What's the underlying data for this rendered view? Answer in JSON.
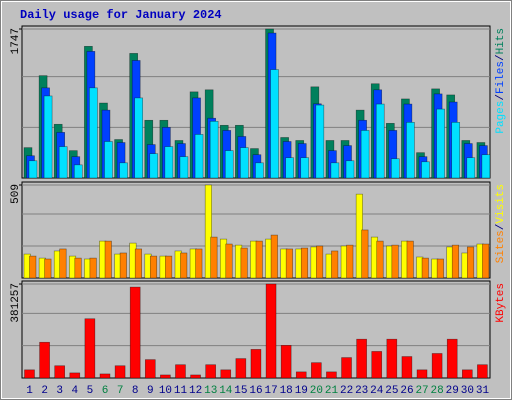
{
  "chart_data": [
    {
      "type": "bar",
      "title": "Daily usage for January 2024",
      "ylim": [
        0,
        1747
      ],
      "yticks": [
        1747
      ],
      "legend_separator": "/",
      "series": [
        {
          "name": "Hits",
          "color": "#00805c",
          "values": [
            356,
            1200,
            630,
            321,
            1544,
            879,
            451,
            1461,
            677,
            677,
            440,
            1010,
            1034,
            618,
            618,
            345,
            1747,
            475,
            440,
            1069,
            440,
            440,
            796,
            1105,
            641,
            927,
            297,
            1045,
            974,
            440,
            416
          ]
        },
        {
          "name": "Files",
          "color": "#0040ff",
          "values": [
            261,
            1057,
            535,
            250,
            1485,
            796,
            416,
            1378,
            392,
            594,
            404,
            939,
            701,
            558,
            487,
            273,
            1700,
            428,
            404,
            870,
            321,
            380,
            677,
            1034,
            558,
            867,
            250,
            986,
            891,
            404,
            380
          ]
        },
        {
          "name": "Pages",
          "color": "#00e0ff",
          "values": [
            202,
            962,
            368,
            154,
            1057,
            428,
            178,
            939,
            285,
            368,
            250,
            511,
            665,
            321,
            356,
            178,
            1271,
            238,
            238,
            855,
            178,
            202,
            558,
            867,
            226,
            653,
            190,
            808,
            653,
            238,
            273
          ]
        }
      ]
    },
    {
      "type": "bar",
      "ylim": [
        0,
        509
      ],
      "yticks": [
        509
      ],
      "legend_separator": "/",
      "series": [
        {
          "name": "Visits",
          "color": "#ffff00",
          "values": [
            131,
            109,
            148,
            120,
            104,
            202,
            131,
            191,
            131,
            120,
            148,
            159,
            509,
            213,
            180,
            202,
            213,
            159,
            159,
            170,
            131,
            175,
            459,
            224,
            175,
            202,
            115,
            104,
            170,
            137,
            186
          ]
        },
        {
          "name": "Sites",
          "color": "#ff8000",
          "values": [
            120,
            104,
            159,
            109,
            109,
            202,
            137,
            159,
            120,
            120,
            137,
            159,
            224,
            186,
            164,
            202,
            235,
            159,
            164,
            175,
            148,
            180,
            263,
            202,
            180,
            202,
            109,
            104,
            180,
            170,
            186
          ]
        }
      ]
    },
    {
      "type": "bar",
      "ylim": [
        0,
        381257
      ],
      "yticks": [
        381257
      ],
      "categories": [
        "1",
        "2",
        "3",
        "4",
        "5",
        "6",
        "7",
        "8",
        "9",
        "10",
        "11",
        "12",
        "13",
        "14",
        "15",
        "16",
        "17",
        "18",
        "19",
        "20",
        "21",
        "22",
        "23",
        "24",
        "25",
        "26",
        "27",
        "28",
        "29",
        "30",
        "31"
      ],
      "category_colors": [
        "#00008b",
        "#00008b",
        "#00008b",
        "#00008b",
        "#00008b",
        "#008040",
        "#008040",
        "#00008b",
        "#00008b",
        "#00008b",
        "#00008b",
        "#00008b",
        "#008040",
        "#008040",
        "#00008b",
        "#00008b",
        "#00008b",
        "#00008b",
        "#00008b",
        "#008040",
        "#008040",
        "#00008b",
        "#00008b",
        "#00008b",
        "#00008b",
        "#00008b",
        "#008040",
        "#008040",
        "#00008b",
        "#00008b",
        "#00008b"
      ],
      "series": [
        {
          "name": "KBytes",
          "color": "#ff0000",
          "values": [
            33152,
            145040,
            49728,
            20720,
            240352,
            16576,
            49728,
            368816,
            74592,
            12432,
            53872,
            12432,
            53872,
            33152,
            78736,
            116032,
            381257,
            132608,
            24864,
            62160,
            24864,
            82880,
            157472,
            107744,
            157472,
            87024,
            33152,
            99456,
            157472,
            33152,
            53872
          ]
        }
      ]
    }
  ]
}
